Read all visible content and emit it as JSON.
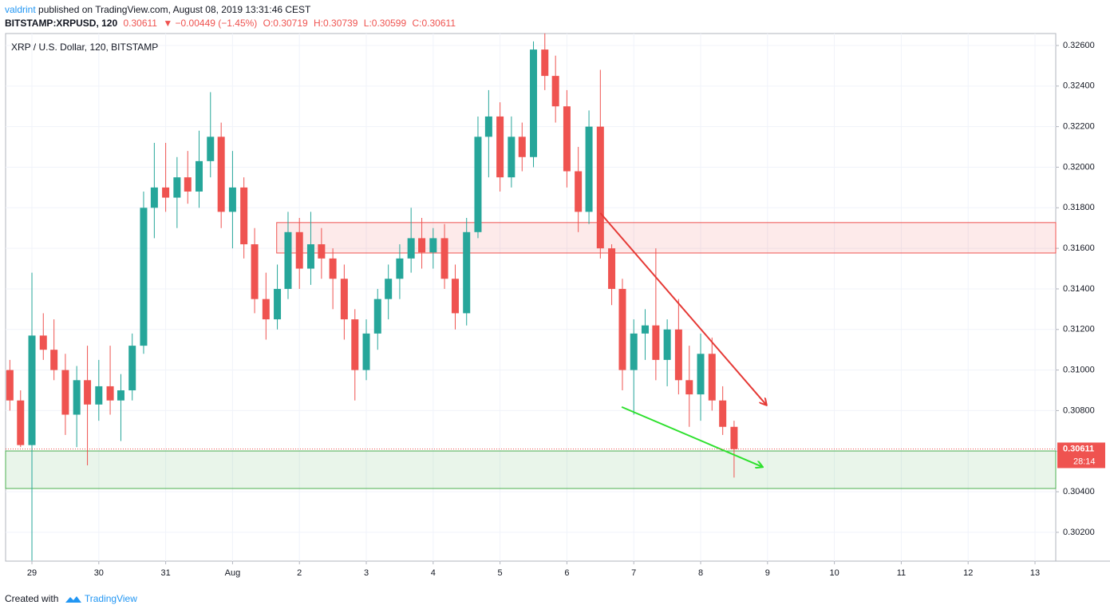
{
  "header": {
    "author": "valdrint",
    "published": "published on TradingView.com, August 08, 2019 13:31:46 CEST",
    "symbol": "BITSTAMP:XRPUSD, 120",
    "last": "0.30611",
    "change": "▼ −0.00449 (−1.45%)",
    "ohlc": [
      "O:0.30719",
      "H:0.30739",
      "L:0.30599",
      "C:0.30611"
    ]
  },
  "footer": {
    "created": "Created with",
    "brand": "TradingView"
  },
  "chart_data": {
    "type": "candlestick",
    "title": "XRP / U.S. Dollar, 120, BITSTAMP",
    "up_color": "#26a69a",
    "down_color": "#ef5350",
    "grid": true,
    "x": [
      28.67,
      28.83,
      29.0,
      29.17,
      29.33,
      29.5,
      29.67,
      29.83,
      30.0,
      30.17,
      30.33,
      30.5,
      30.67,
      30.83,
      31.0,
      31.17,
      31.33,
      31.5,
      31.67,
      31.83,
      32.0,
      32.17,
      32.33,
      32.5,
      32.67,
      32.83,
      33.0,
      33.17,
      33.33,
      33.5,
      33.67,
      33.83,
      34.0,
      34.17,
      34.33,
      34.5,
      34.67,
      34.83,
      35.0,
      35.17,
      35.33,
      35.5,
      35.67,
      35.83,
      36.0,
      36.17,
      36.33,
      36.5,
      36.67,
      36.83,
      37.0,
      37.17,
      37.33,
      37.5,
      37.67,
      37.83,
      38.0,
      38.17,
      38.33,
      38.5,
      38.67,
      38.83,
      39.0,
      39.17,
      39.33,
      39.5
    ],
    "open": [
      0.31,
      0.3085,
      0.3063,
      0.3117,
      0.311,
      0.31,
      0.3078,
      0.3095,
      0.3083,
      0.3092,
      0.3085,
      0.309,
      0.3112,
      0.318,
      0.319,
      0.3185,
      0.3195,
      0.3188,
      0.3203,
      0.3215,
      0.3178,
      0.319,
      0.3162,
      0.3135,
      0.3125,
      0.314,
      0.3168,
      0.315,
      0.3162,
      0.3155,
      0.3145,
      0.3125,
      0.31,
      0.3118,
      0.3135,
      0.3145,
      0.3155,
      0.3165,
      0.3158,
      0.3165,
      0.3145,
      0.3128,
      0.3168,
      0.3215,
      0.3225,
      0.3195,
      0.3215,
      0.3205,
      0.3258,
      0.3245,
      0.323,
      0.3198,
      0.3178,
      0.322,
      0.316,
      0.314,
      0.31,
      0.3118,
      0.3122,
      0.3105,
      0.312,
      0.3095,
      0.3088,
      0.3108,
      0.3085,
      0.3072
    ],
    "high": [
      0.3105,
      0.309,
      0.3148,
      0.3128,
      0.3125,
      0.3108,
      0.3102,
      0.3112,
      0.3105,
      0.3112,
      0.3098,
      0.3118,
      0.3188,
      0.3212,
      0.3212,
      0.3205,
      0.3208,
      0.3218,
      0.3237,
      0.3222,
      0.3208,
      0.3195,
      0.317,
      0.3148,
      0.3152,
      0.3178,
      0.3175,
      0.3178,
      0.317,
      0.316,
      0.3152,
      0.313,
      0.3125,
      0.314,
      0.3152,
      0.3162,
      0.318,
      0.3175,
      0.317,
      0.3172,
      0.3152,
      0.3175,
      0.3225,
      0.3238,
      0.3232,
      0.3225,
      0.3222,
      0.3262,
      0.3266,
      0.3255,
      0.3238,
      0.321,
      0.3228,
      0.3248,
      0.3162,
      0.3145,
      0.3125,
      0.313,
      0.316,
      0.3125,
      0.3135,
      0.3112,
      0.3118,
      0.3116,
      0.3092,
      0.3075
    ],
    "low": [
      0.308,
      0.3062,
      0.3006,
      0.3105,
      0.3095,
      0.3068,
      0.3062,
      0.3053,
      0.3075,
      0.3078,
      0.3065,
      0.3085,
      0.3108,
      0.3165,
      0.3178,
      0.317,
      0.3182,
      0.318,
      0.3195,
      0.317,
      0.316,
      0.3155,
      0.3128,
      0.3115,
      0.312,
      0.3135,
      0.314,
      0.3142,
      0.3145,
      0.313,
      0.3115,
      0.3085,
      0.3095,
      0.311,
      0.3125,
      0.3135,
      0.3148,
      0.315,
      0.315,
      0.314,
      0.312,
      0.3122,
      0.3165,
      0.3195,
      0.3188,
      0.319,
      0.3198,
      0.32,
      0.3238,
      0.3222,
      0.319,
      0.3168,
      0.3172,
      0.3155,
      0.3132,
      0.309,
      0.3078,
      0.3105,
      0.3095,
      0.3092,
      0.3088,
      0.3072,
      0.3075,
      0.308,
      0.3068,
      0.3047
    ],
    "close": [
      0.3085,
      0.3063,
      0.3117,
      0.311,
      0.31,
      0.3078,
      0.3095,
      0.3083,
      0.3092,
      0.3085,
      0.309,
      0.3112,
      0.318,
      0.319,
      0.3185,
      0.3195,
      0.3188,
      0.3203,
      0.3215,
      0.3178,
      0.319,
      0.3162,
      0.3135,
      0.3125,
      0.314,
      0.3168,
      0.315,
      0.3162,
      0.3155,
      0.3145,
      0.3125,
      0.31,
      0.3118,
      0.3135,
      0.3145,
      0.3155,
      0.3165,
      0.3158,
      0.3165,
      0.3145,
      0.3128,
      0.3168,
      0.3215,
      0.3225,
      0.3195,
      0.3215,
      0.3205,
      0.3258,
      0.3245,
      0.323,
      0.3198,
      0.3178,
      0.322,
      0.316,
      0.314,
      0.31,
      0.3118,
      0.3122,
      0.3105,
      0.312,
      0.3095,
      0.3088,
      0.3108,
      0.3085,
      0.3072,
      0.3061
    ],
    "xlim": [
      28.606,
      44.31
    ],
    "xticks": [
      29,
      30,
      31,
      {
        "value": 32,
        "label": "Aug"
      },
      {
        "value": 33,
        "label": "2"
      },
      {
        "value": 34,
        "label": "3"
      },
      {
        "value": 35,
        "label": "4"
      },
      {
        "value": 36,
        "label": "5"
      },
      {
        "value": 37,
        "label": "6"
      },
      {
        "value": 38,
        "label": "7"
      },
      {
        "value": 39,
        "label": "8"
      },
      {
        "value": 40,
        "label": "9"
      },
      {
        "value": 41,
        "label": "10"
      },
      {
        "value": 42,
        "label": "11"
      },
      {
        "value": 43,
        "label": "12"
      },
      {
        "value": 44,
        "label": "13"
      }
    ],
    "ylim": [
      0.30058,
      0.32659
    ],
    "yticks": [
      {
        "value": 0.302,
        "label": "0.30200"
      },
      {
        "value": 0.304,
        "label": "0.30400"
      },
      {
        "value": 0.306,
        "label": "0.30600"
      },
      {
        "value": 0.308,
        "label": "0.30800"
      },
      {
        "value": 0.31,
        "label": "0.31000"
      },
      {
        "value": 0.312,
        "label": "0.31200"
      },
      {
        "value": 0.314,
        "label": "0.31400"
      },
      {
        "value": 0.316,
        "label": "0.31600"
      },
      {
        "value": 0.318,
        "label": "0.31800"
      },
      {
        "value": 0.32,
        "label": "0.32000"
      },
      {
        "value": 0.322,
        "label": "0.32200"
      },
      {
        "value": 0.324,
        "label": "0.32400"
      },
      {
        "value": 0.326,
        "label": "0.32600"
      }
    ],
    "last_price": 0.30611,
    "countdown": "28:14",
    "zones": [
      {
        "ylim": [
          0.31577,
          0.31727
        ],
        "xstart": 32.66,
        "color": "#ef5350"
      },
      {
        "ylim": [
          0.30416,
          0.30601
        ],
        "xstart": 28.606,
        "color": "#4caf50"
      }
    ],
    "trendlines": [
      {
        "x": [
          37.5,
          39.98
        ],
        "y": [
          0.31774,
          0.30829
        ],
        "color": "#e53935"
      },
      {
        "x": [
          37.82,
          39.92
        ],
        "y": [
          0.30818,
          0.30523
        ],
        "color": "#2ee02e"
      }
    ]
  }
}
